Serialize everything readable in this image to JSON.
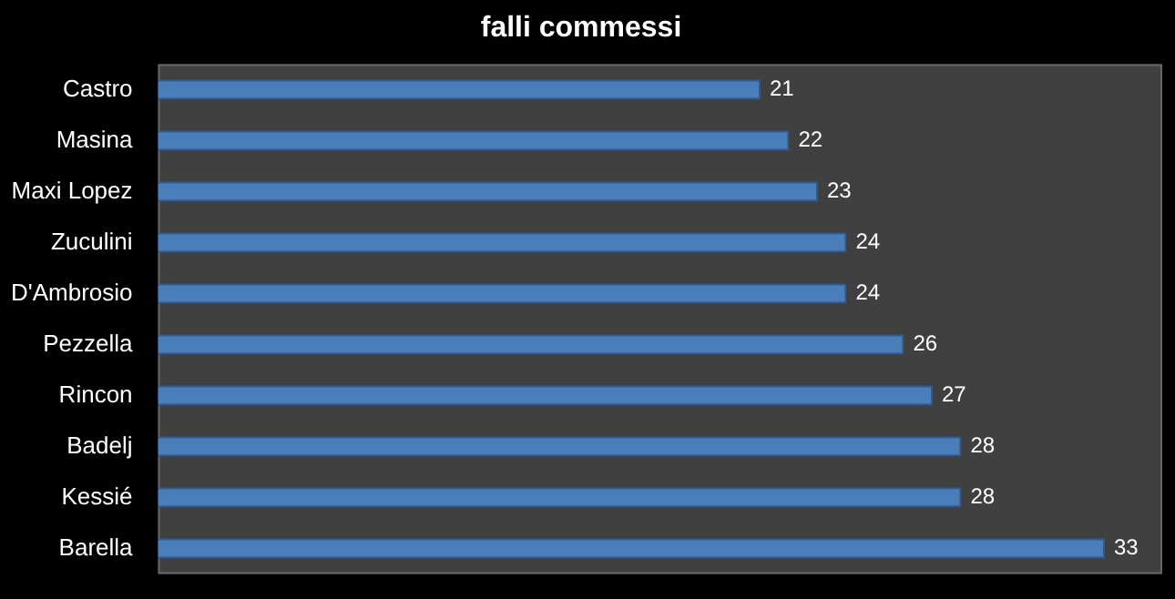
{
  "chart_data": {
    "type": "bar",
    "title": "falli commessi",
    "orientation": "horizontal",
    "categories": [
      "Castro",
      "Masina",
      "Maxi Lopez",
      "Zuculini",
      "D'Ambrosio",
      "Pezzella",
      "Rincon",
      "Badelj",
      "Kessié",
      "Barella"
    ],
    "values": [
      21,
      22,
      23,
      24,
      24,
      26,
      27,
      28,
      28,
      33
    ],
    "color": "#4a7ebb",
    "xlim": [
      0,
      35
    ],
    "tick_labels": "y",
    "data_labels": true
  }
}
